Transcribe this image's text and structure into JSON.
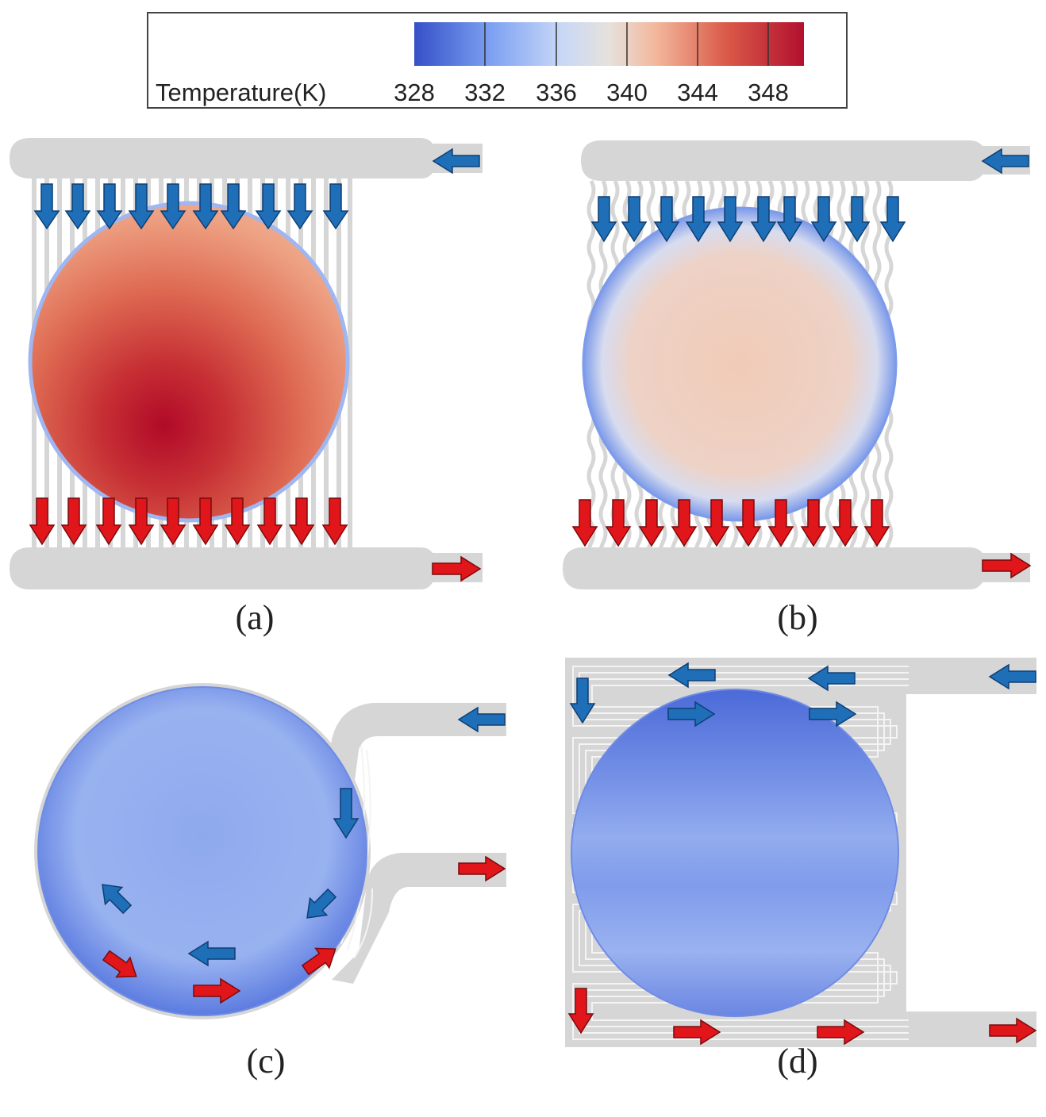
{
  "colorbar": {
    "title": "Temperature(K)",
    "ticks": [
      "328",
      "332",
      "336",
      "340",
      "344",
      "348"
    ],
    "colors": [
      "#3550c8",
      "#7ea2f2",
      "#dfe4ee",
      "#f2b49a",
      "#da5a48",
      "#b2102e"
    ]
  },
  "panels": [
    {
      "caption": "(a)",
      "plate_temperature": "hot",
      "channel_pattern": "straight parallel"
    },
    {
      "caption": "(b)",
      "plate_temperature": "warm",
      "channel_pattern": "wavy parallel"
    },
    {
      "caption": "(c)",
      "plate_temperature": "cool",
      "channel_pattern": "curved around plate"
    },
    {
      "caption": "(d)",
      "plate_temperature": "cool",
      "channel_pattern": "serpentine"
    }
  ],
  "arrows": {
    "inlet_color": "#1f6fb8",
    "outlet_color": "#e0161b"
  },
  "channel_color": "#d6d6d6"
}
